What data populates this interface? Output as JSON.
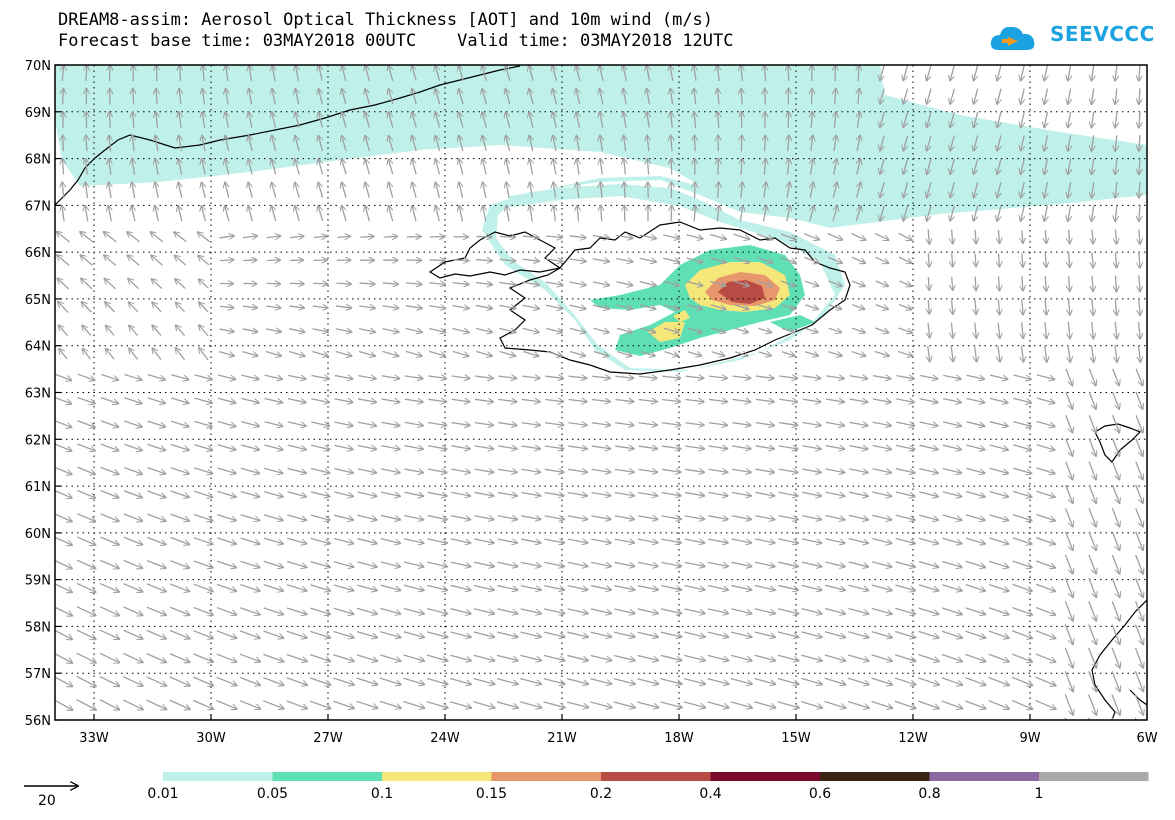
{
  "title": {
    "line1": "DREAM8-assim: Aerosol Optical Thickness [AOT] and 10m wind (m/s)",
    "line2": "Forecast base time: 03MAY2018 00UTC    Valid time: 03MAY2018 12UTC"
  },
  "logo": {
    "text": "SEEVCCC",
    "icon": "cloud-arrow-icon",
    "color": "#1aa3e0"
  },
  "map": {
    "lat_labels": [
      "70N",
      "69N",
      "68N",
      "67N",
      "66N",
      "65N",
      "64N",
      "63N",
      "62N",
      "61N",
      "60N",
      "59N",
      "58N",
      "57N",
      "56N"
    ],
    "lat_values": [
      70,
      69,
      68,
      67,
      66,
      65,
      64,
      63,
      62,
      61,
      60,
      59,
      58,
      57,
      56
    ],
    "lon_labels": [
      "33W",
      "30W",
      "27W",
      "24W",
      "21W",
      "18W",
      "15W",
      "12W",
      "9W",
      "6W"
    ],
    "lon_values": [
      -33,
      -30,
      -27,
      -24,
      -21,
      -18,
      -15,
      -12,
      -9,
      -6
    ],
    "lat_range": [
      56,
      70
    ],
    "lon_range": [
      -34,
      -6
    ]
  },
  "wind_legend": {
    "value": "20"
  },
  "colorbar": {
    "labels": [
      "0.01",
      "0.05",
      "0.1",
      "0.15",
      "0.2",
      "0.4",
      "0.6",
      "0.8",
      "1"
    ],
    "colors": [
      "#bff1ea",
      "#5fe0b4",
      "#f5e77a",
      "#e8976c",
      "#b84c44",
      "#7a0a2a",
      "#3b2314",
      "#8b6aa4",
      "#a9a9a9"
    ]
  },
  "aot_colors": {
    "c1": "#bff1ea",
    "c2": "#5fe0b4",
    "c3": "#f5e77a",
    "c4": "#e8976c",
    "c5": "#b84c44"
  }
}
